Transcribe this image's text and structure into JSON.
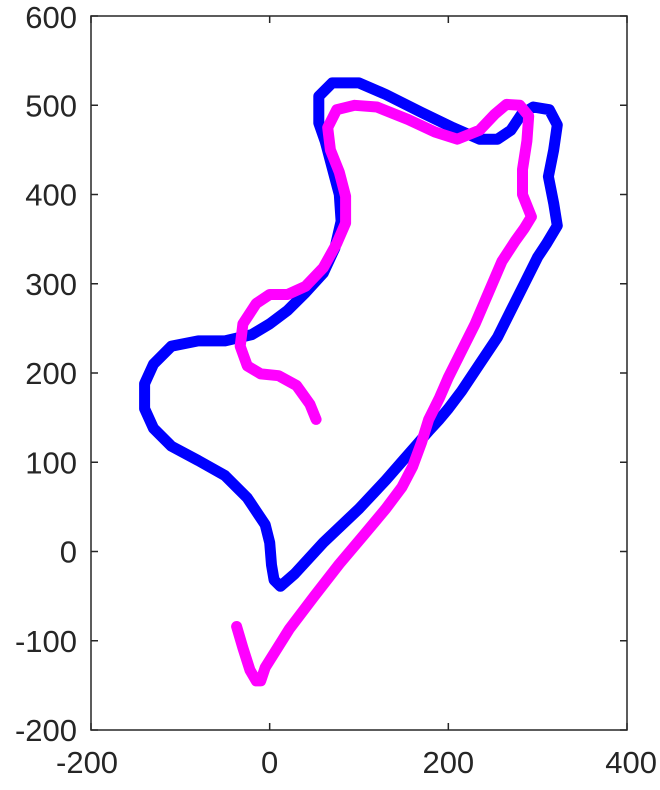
{
  "chart_data": {
    "type": "line",
    "title": "",
    "xlabel": "",
    "ylabel": "",
    "xlim": [
      -200,
      400
    ],
    "ylim": [
      -200,
      600
    ],
    "xticks": [
      -200,
      0,
      200,
      400
    ],
    "yticks": [
      -200,
      -100,
      0,
      100,
      200,
      300,
      400,
      500,
      600
    ],
    "xtick_labels": [
      "-200",
      "0",
      "200",
      "400"
    ],
    "ytick_labels": [
      "-200",
      "-100",
      "0",
      "100",
      "200",
      "300",
      "400",
      "500",
      "600"
    ],
    "grid": false,
    "legend": "none",
    "axis_color": "#262626",
    "series": [
      {
        "color": "#0000ff",
        "closed": true,
        "points": [
          [
            12,
            -39
          ],
          [
            28,
            -25
          ],
          [
            60,
            10
          ],
          [
            100,
            48
          ],
          [
            130,
            80
          ],
          [
            150,
            103
          ],
          [
            165,
            120
          ],
          [
            178,
            135
          ],
          [
            190,
            148
          ],
          [
            200,
            160
          ],
          [
            215,
            180
          ],
          [
            235,
            210
          ],
          [
            255,
            240
          ],
          [
            270,
            270
          ],
          [
            285,
            300
          ],
          [
            300,
            330
          ],
          [
            310,
            345
          ],
          [
            322,
            365
          ],
          [
            318,
            390
          ],
          [
            312,
            420
          ],
          [
            318,
            450
          ],
          [
            322,
            478
          ],
          [
            313,
            495
          ],
          [
            295,
            498
          ],
          [
            282,
            490
          ],
          [
            270,
            472
          ],
          [
            255,
            462
          ],
          [
            235,
            462
          ],
          [
            205,
            475
          ],
          [
            170,
            492
          ],
          [
            130,
            512
          ],
          [
            100,
            525
          ],
          [
            70,
            525
          ],
          [
            55,
            510
          ],
          [
            55,
            480
          ],
          [
            62,
            460
          ],
          [
            70,
            430
          ],
          [
            78,
            400
          ],
          [
            80,
            370
          ],
          [
            73,
            340
          ],
          [
            60,
            312
          ],
          [
            40,
            290
          ],
          [
            20,
            270
          ],
          [
            0,
            255
          ],
          [
            -20,
            243
          ],
          [
            -50,
            236
          ],
          [
            -80,
            236
          ],
          [
            -110,
            230
          ],
          [
            -130,
            210
          ],
          [
            -140,
            188
          ],
          [
            -140,
            160
          ],
          [
            -130,
            138
          ],
          [
            -110,
            118
          ],
          [
            -80,
            102
          ],
          [
            -50,
            85
          ],
          [
            -25,
            60
          ],
          [
            -5,
            30
          ],
          [
            0,
            10
          ],
          [
            2,
            -15
          ],
          [
            5,
            -32
          ]
        ]
      },
      {
        "color": "#ff00ff",
        "closed": false,
        "points": [
          [
            52,
            148
          ],
          [
            45,
            165
          ],
          [
            30,
            186
          ],
          [
            10,
            197
          ],
          [
            -10,
            199
          ],
          [
            -25,
            208
          ],
          [
            -33,
            230
          ],
          [
            -30,
            255
          ],
          [
            -15,
            278
          ],
          [
            0,
            288
          ],
          [
            20,
            288
          ],
          [
            40,
            297
          ],
          [
            60,
            318
          ],
          [
            75,
            345
          ],
          [
            85,
            368
          ],
          [
            85,
            398
          ],
          [
            78,
            425
          ],
          [
            68,
            450
          ],
          [
            65,
            475
          ],
          [
            75,
            495
          ],
          [
            95,
            500
          ],
          [
            120,
            498
          ],
          [
            155,
            484
          ],
          [
            185,
            470
          ],
          [
            210,
            462
          ],
          [
            235,
            472
          ],
          [
            252,
            490
          ],
          [
            265,
            501
          ],
          [
            280,
            500
          ],
          [
            290,
            488
          ],
          [
            288,
            460
          ],
          [
            283,
            428
          ],
          [
            283,
            400
          ],
          [
            293,
            375
          ],
          [
            285,
            362
          ],
          [
            275,
            348
          ],
          [
            260,
            325
          ],
          [
            245,
            290
          ],
          [
            230,
            255
          ],
          [
            215,
            225
          ],
          [
            200,
            195
          ],
          [
            190,
            172
          ],
          [
            178,
            148
          ],
          [
            170,
            122
          ],
          [
            160,
            95
          ],
          [
            148,
            72
          ],
          [
            130,
            48
          ],
          [
            105,
            18
          ],
          [
            78,
            -14
          ],
          [
            50,
            -50
          ],
          [
            22,
            -87
          ],
          [
            -5,
            -130
          ],
          [
            -10,
            -145
          ],
          [
            -15,
            -145
          ],
          [
            -22,
            -133
          ],
          [
            -30,
            -108
          ],
          [
            -37,
            -84
          ]
        ]
      }
    ]
  }
}
